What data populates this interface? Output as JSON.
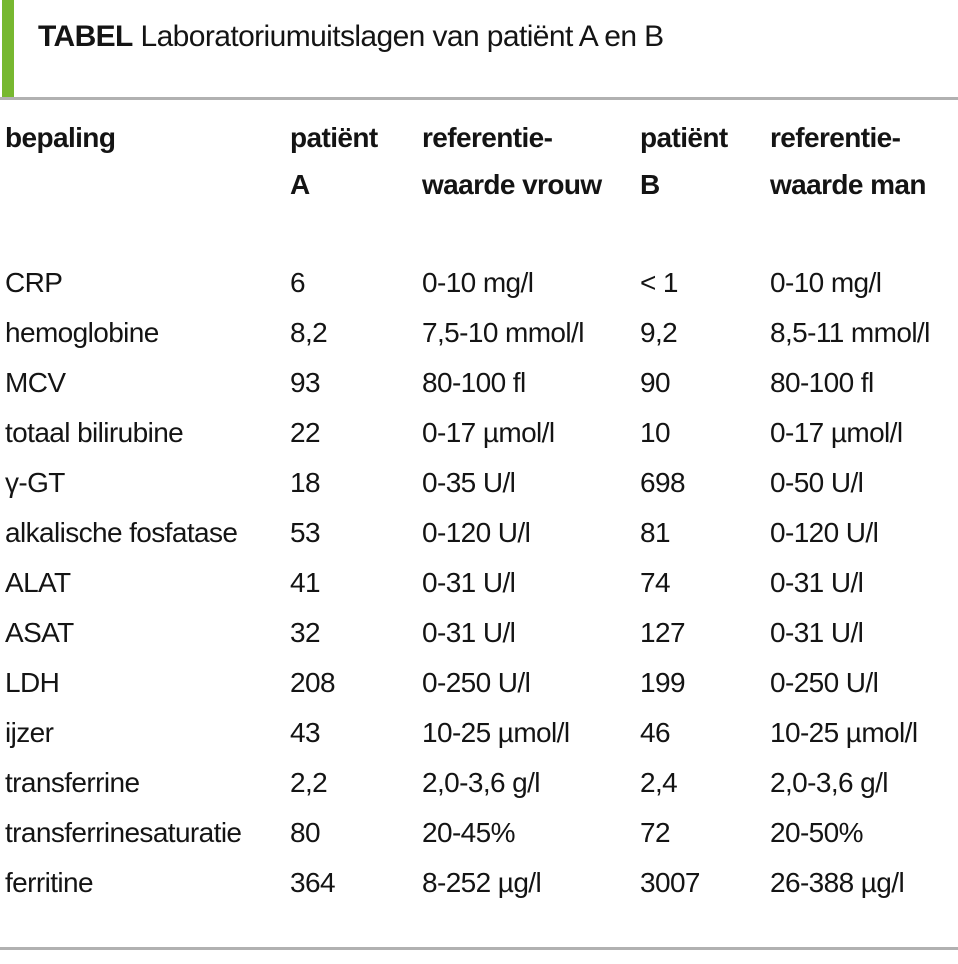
{
  "title": {
    "tag": "TABEL",
    "text": "Laboratoriumuitslagen van patiënt A en B"
  },
  "colors": {
    "accent_green": "#77b830",
    "rule_gray": "#b1b1b1",
    "text": "#141414",
    "background": "#ffffff"
  },
  "table": {
    "headers": [
      {
        "line1": "bepaling",
        "line2": ""
      },
      {
        "line1": "patiënt",
        "line2": "A"
      },
      {
        "line1": "referentie-",
        "line2": "waarde vrouw"
      },
      {
        "line1": "patiënt",
        "line2": "B"
      },
      {
        "line1": "referentie-",
        "line2": "waarde man"
      }
    ],
    "rows": [
      [
        "CRP",
        "6",
        "0-10 mg/l",
        "< 1",
        "0-10 mg/l"
      ],
      [
        "hemoglobine",
        "8,2",
        "7,5-10 mmol/l",
        "9,2",
        "8,5-11 mmol/l"
      ],
      [
        "MCV",
        "93",
        "80-100 fl",
        "90",
        "80-100 fl"
      ],
      [
        "totaal bilirubine",
        "22",
        "0-17 µmol/l",
        "10",
        "0-17 µmol/l"
      ],
      [
        "γ-GT",
        "18",
        "0-35 U/l",
        "698",
        "0-50 U/l"
      ],
      [
        "alkalische fosfatase",
        "53",
        "0-120 U/l",
        "81",
        "0-120 U/l"
      ],
      [
        "ALAT",
        "41",
        "0-31 U/l",
        "74",
        "0-31 U/l"
      ],
      [
        "ASAT",
        "32",
        "0-31 U/l",
        "127",
        "0-31 U/l"
      ],
      [
        "LDH",
        "208",
        "0-250 U/l",
        "199",
        "0-250 U/l"
      ],
      [
        "ijzer",
        "43",
        "10-25 µmol/l",
        "46",
        "10-25 µmol/l"
      ],
      [
        "transferrine",
        "2,2",
        "2,0-3,6 g/l",
        "2,4",
        "2,0-3,6 g/l"
      ],
      [
        "transferrinesaturatie",
        "80",
        "20-45%",
        "72",
        "20-50%"
      ],
      [
        "ferritine",
        "364",
        "8-252 µg/l",
        "3007",
        "26-388 µg/l"
      ]
    ]
  }
}
